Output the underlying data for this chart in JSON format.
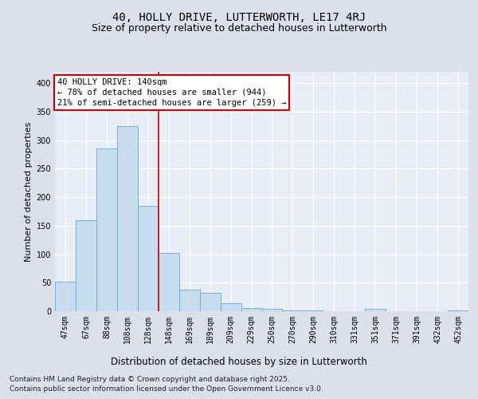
{
  "title1": "40, HOLLY DRIVE, LUTTERWORTH, LE17 4RJ",
  "title2": "Size of property relative to detached houses in Lutterworth",
  "xlabel": "Distribution of detached houses by size in Lutterworth",
  "ylabel": "Number of detached properties",
  "categories": [
    "47sqm",
    "67sqm",
    "88sqm",
    "108sqm",
    "128sqm",
    "148sqm",
    "169sqm",
    "189sqm",
    "209sqm",
    "229sqm",
    "250sqm",
    "270sqm",
    "290sqm",
    "310sqm",
    "331sqm",
    "351sqm",
    "371sqm",
    "391sqm",
    "432sqm",
    "452sqm"
  ],
  "values": [
    52,
    160,
    285,
    325,
    185,
    102,
    38,
    32,
    14,
    6,
    4,
    2,
    1,
    0,
    0,
    4,
    0,
    0,
    0,
    2
  ],
  "bar_color": "#c8dcf0",
  "bar_edge_color": "#6aaad4",
  "vline_position": 4.5,
  "vline_color": "#cc0000",
  "annotation_title": "40 HOLLY DRIVE: 140sqm",
  "annotation_line1": "← 78% of detached houses are smaller (944)",
  "annotation_line2": "21% of semi-detached houses are larger (259) →",
  "annotation_box_color": "#cc0000",
  "ylim": [
    0,
    420
  ],
  "yticks": [
    0,
    50,
    100,
    150,
    200,
    250,
    300,
    350,
    400
  ],
  "background_color": "#dde0ea",
  "plot_bg_color": "#e8ecf5",
  "grid_color": "#ffffff",
  "footer1": "Contains HM Land Registry data © Crown copyright and database right 2025.",
  "footer2": "Contains public sector information licensed under the Open Government Licence v3.0.",
  "title1_fontsize": 10,
  "title2_fontsize": 9,
  "xlabel_fontsize": 8.5,
  "ylabel_fontsize": 8,
  "tick_fontsize": 7,
  "annotation_fontsize": 7.5,
  "footer_fontsize": 6.5
}
